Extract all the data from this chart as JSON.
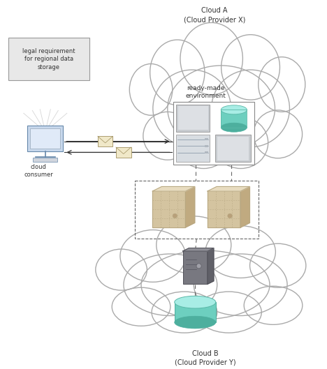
{
  "background_color": "#ffffff",
  "cloud_a_label": "Cloud A\n(Cloud Provider X)",
  "cloud_b_label": "Cloud B\n(Cloud Provider Y)",
  "ready_made_label": "ready-made\nenvironment",
  "legal_label": "legal requirement\nfor regional data\nstorage",
  "cloud_consumer_label": "cloud\nconsumer",
  "teal_color": "#6dcfbf",
  "teal_top": "#a8ede5",
  "tan_color": "#d4c4a0",
  "tan_dark": "#b8a882",
  "tan_light": "#e8dcc0",
  "gray_server": "#747474",
  "gray_server_dark": "#555555",
  "light_gray": "#c0c0c0",
  "mid_gray": "#d0d0d0",
  "text_color": "#333333",
  "dashed_color": "#666666",
  "arrow_color": "#333333",
  "cloud_edge": "#aaaaaa",
  "env_box_edge": "#888888"
}
